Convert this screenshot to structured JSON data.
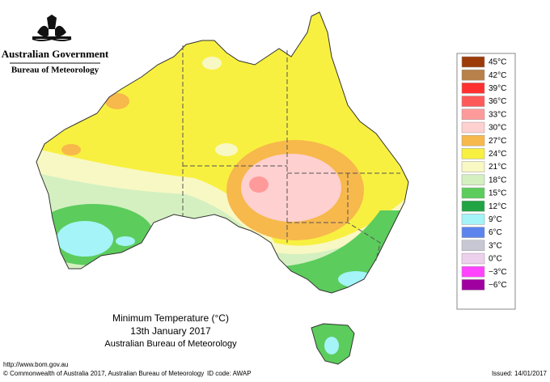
{
  "header": {
    "title": "Australian Government",
    "subtitle": "Bureau of Meteorology"
  },
  "map": {
    "title": "Minimum Temperature (°C)",
    "date": "13th January 2017",
    "source": "Australian Bureau of Meteorology"
  },
  "legend": {
    "items": [
      {
        "label": "45°C",
        "color": "#9c3a0a"
      },
      {
        "label": "42°C",
        "color": "#b8804a"
      },
      {
        "label": "39°C",
        "color": "#ff3030"
      },
      {
        "label": "36°C",
        "color": "#ff5a5a"
      },
      {
        "label": "33°C",
        "color": "#ff9a9a"
      },
      {
        "label": "30°C",
        "color": "#ffd0d0"
      },
      {
        "label": "27°C",
        "color": "#f7b84c"
      },
      {
        "label": "24°C",
        "color": "#f8f040"
      },
      {
        "label": "21°C",
        "color": "#f8f8c4"
      },
      {
        "label": "18°C",
        "color": "#d4f0c0"
      },
      {
        "label": "15°C",
        "color": "#5ccc5c"
      },
      {
        "label": "12°C",
        "color": "#20a444"
      },
      {
        "label": "9°C",
        "color": "#a4f4f8"
      },
      {
        "label": "6°C",
        "color": "#5c84ec"
      },
      {
        "label": "3°C",
        "color": "#c8c8d4"
      },
      {
        "label": "0°C",
        "color": "#ecd0ec"
      },
      {
        "label": "−3°C",
        "color": "#ff44ff"
      },
      {
        "label": "−6°C",
        "color": "#a000a0"
      }
    ]
  },
  "footer": {
    "url": "http://www.bom.gov.au",
    "copyright": "© Commonwealth of Australia 2017, Australian Bureau of Meteorology",
    "id_code": "ID code: AWAP",
    "issued": "Issued: 14/01/2017"
  }
}
